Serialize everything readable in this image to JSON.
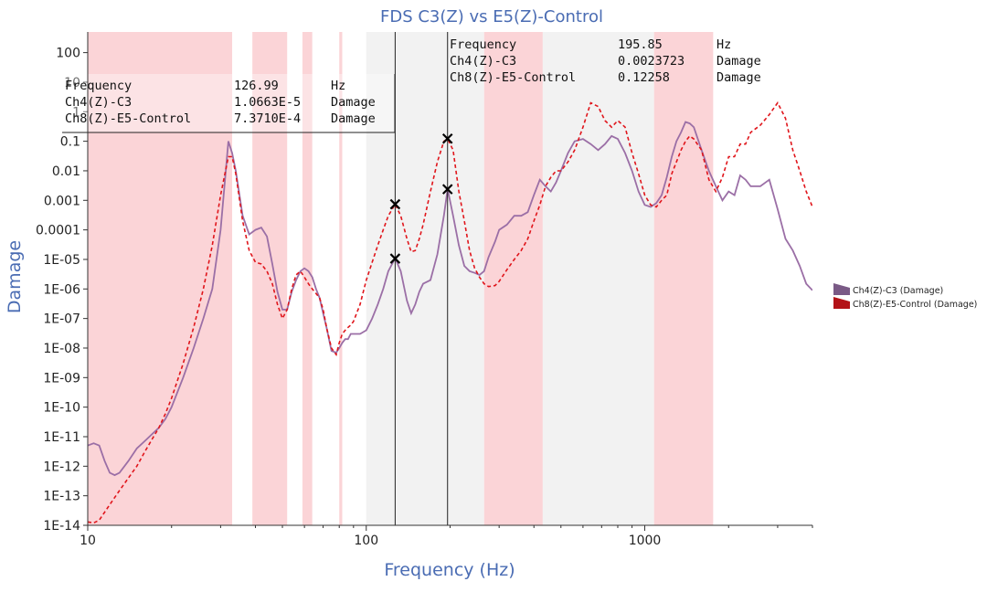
{
  "chart_data": {
    "type": "line",
    "title": "FDS C3(Z) vs E5(Z)-Control",
    "xlabel": "Frequency (Hz)",
    "ylabel": "Damage",
    "x_scale": "log",
    "y_scale": "log",
    "xlim": [
      10,
      4000
    ],
    "ylim": [
      1e-14,
      500
    ],
    "x_ticks": [
      10,
      100,
      1000
    ],
    "x_tick_labels": [
      "10",
      "100",
      "1000"
    ],
    "y_ticks": [
      1e-14,
      1e-13,
      1e-12,
      1e-11,
      1e-10,
      1e-09,
      1e-08,
      1e-07,
      1e-06,
      1e-05,
      0.0001,
      0.001,
      0.01,
      0.1,
      1,
      10,
      100
    ],
    "y_tick_labels": [
      "1E-14",
      "1E-13",
      "1E-12",
      "1E-11",
      "1E-10",
      "1E-09",
      "1E-08",
      "1E-07",
      "1E-06",
      "1E-05",
      "0.0001",
      "0.001",
      "0.01",
      "0.1",
      "1",
      "10",
      "100"
    ],
    "legend_position": "right",
    "pink_bands": [
      [
        10,
        33
      ],
      [
        39,
        52
      ],
      [
        59,
        64
      ],
      [
        80,
        82
      ],
      [
        265,
        430
      ],
      [
        1080,
        1760
      ]
    ],
    "grey_bands": [
      [
        100,
        265
      ],
      [
        430,
        1080
      ]
    ],
    "series": [
      {
        "name": "Ch4(Z)-C3 (Damage)",
        "color": "#9b6fa6",
        "dash": "solid",
        "x": [
          10,
          10.5,
          11,
          11.5,
          12,
          12.5,
          13,
          14,
          15,
          16,
          17,
          18,
          19,
          20,
          22,
          24,
          26,
          28,
          30,
          32,
          33,
          34,
          36,
          38,
          40,
          42,
          44,
          46,
          48,
          50,
          52,
          54,
          56,
          58,
          60,
          62,
          64,
          66,
          68,
          70,
          72,
          75,
          78,
          80,
          82,
          84,
          86,
          88,
          90,
          95,
          100,
          105,
          110,
          115,
          120,
          127,
          133,
          140,
          145,
          150,
          155,
          160,
          170,
          180,
          190,
          196,
          205,
          215,
          225,
          235,
          245,
          255,
          265,
          275,
          290,
          300,
          320,
          340,
          360,
          380,
          400,
          420,
          440,
          460,
          480,
          500,
          530,
          560,
          600,
          640,
          680,
          720,
          760,
          800,
          850,
          900,
          950,
          1000,
          1050,
          1100,
          1150,
          1200,
          1250,
          1300,
          1350,
          1400,
          1450,
          1500,
          1600,
          1700,
          1800,
          1900,
          2000,
          2100,
          2200,
          2300,
          2400,
          2600,
          2800,
          3000,
          3200,
          3400,
          3600,
          3800,
          4000
        ],
        "y": [
          5e-12,
          6e-12,
          5e-12,
          1.5e-12,
          6e-13,
          5e-13,
          6e-13,
          1.5e-12,
          4e-12,
          7e-12,
          1.2e-11,
          2e-11,
          4e-11,
          1e-10,
          1e-09,
          1e-08,
          1e-07,
          1e-06,
          0.0001,
          0.1,
          0.04,
          0.01,
          0.0003,
          7e-05,
          0.0001,
          0.00012,
          6e-05,
          7e-06,
          8e-07,
          2e-07,
          2e-07,
          8e-07,
          2e-06,
          4e-06,
          5e-06,
          4e-06,
          2.5e-06,
          1e-06,
          5e-07,
          1.5e-07,
          5e-08,
          8e-09,
          7e-09,
          1e-08,
          1.5e-08,
          2e-08,
          2e-08,
          3e-08,
          3e-08,
          3e-08,
          4e-08,
          1e-07,
          3e-07,
          1e-06,
          4e-06,
          1.1e-05,
          4e-06,
          4e-07,
          1.5e-07,
          3e-07,
          8e-07,
          1.5e-06,
          2e-06,
          1.5e-05,
          0.0003,
          0.0024,
          0.0003,
          3e-05,
          6e-06,
          4e-06,
          3.5e-06,
          3e-06,
          4e-06,
          1.2e-05,
          4e-05,
          0.0001,
          0.00015,
          0.0003,
          0.0003,
          0.0004,
          0.0015,
          0.005,
          0.003,
          0.002,
          0.004,
          0.01,
          0.04,
          0.1,
          0.12,
          0.08,
          0.05,
          0.08,
          0.15,
          0.12,
          0.04,
          0.01,
          0.002,
          0.0007,
          0.0006,
          0.0008,
          0.0015,
          0.006,
          0.03,
          0.1,
          0.2,
          0.45,
          0.4,
          0.3,
          0.05,
          0.01,
          0.003,
          0.001,
          0.002,
          0.0015,
          0.007,
          0.005,
          0.003,
          0.003,
          0.005,
          0.0005,
          5e-05,
          2e-05,
          6e-06,
          1.5e-06,
          9e-07
        ]
      },
      {
        "name": "Ch8(Z)-E5-Control (Damage)",
        "color": "#e0151b",
        "dash": "dashed",
        "x": [
          10,
          10.5,
          11,
          12,
          13,
          14,
          15,
          16,
          17,
          18,
          19,
          20,
          22,
          24,
          26,
          28,
          30,
          32,
          33,
          34,
          36,
          38,
          40,
          42,
          44,
          46,
          48,
          50,
          52,
          54,
          56,
          58,
          60,
          62,
          64,
          66,
          68,
          70,
          72,
          75,
          78,
          80,
          82,
          84,
          86,
          88,
          90,
          95,
          100,
          105,
          110,
          115,
          120,
          127,
          133,
          140,
          145,
          150,
          155,
          160,
          170,
          180,
          190,
          196,
          205,
          215,
          225,
          235,
          245,
          255,
          265,
          275,
          290,
          300,
          320,
          340,
          360,
          380,
          400,
          420,
          440,
          460,
          480,
          500,
          530,
          560,
          600,
          640,
          680,
          720,
          760,
          800,
          850,
          900,
          950,
          1000,
          1050,
          1100,
          1150,
          1200,
          1250,
          1300,
          1350,
          1400,
          1450,
          1500,
          1600,
          1700,
          1800,
          1900,
          2000,
          2100,
          2200,
          2300,
          2400,
          2600,
          2800,
          3000,
          3200,
          3400,
          3600,
          3800,
          4000
        ],
        "y": [
          1.3e-14,
          1.2e-14,
          1.5e-14,
          5e-14,
          1.5e-13,
          4e-13,
          1e-12,
          3e-12,
          8e-12,
          2e-11,
          6e-11,
          2e-10,
          3e-09,
          5e-08,
          1e-06,
          3e-05,
          0.0015,
          0.03,
          0.03,
          0.008,
          0.0002,
          2e-05,
          8e-06,
          7e-06,
          4e-06,
          1.5e-06,
          3e-07,
          1e-07,
          2e-07,
          1e-06,
          3e-06,
          4e-06,
          2.5e-06,
          1.5e-06,
          1e-06,
          7e-07,
          5e-07,
          2e-07,
          5e-08,
          1e-08,
          6e-09,
          1.5e-08,
          3e-08,
          4e-08,
          5e-08,
          6e-08,
          8e-08,
          3e-07,
          2e-06,
          8e-06,
          3e-05,
          0.0001,
          0.0003,
          0.00074,
          0.0003,
          5e-05,
          1.8e-05,
          2e-05,
          5e-05,
          0.00015,
          0.002,
          0.02,
          0.1,
          0.12,
          0.05,
          0.002,
          0.0002,
          2e-05,
          5e-06,
          2.5e-06,
          1.5e-06,
          1.2e-06,
          1.3e-06,
          1.8e-06,
          4.5e-06,
          1e-05,
          2e-05,
          5e-05,
          0.0002,
          0.0007,
          0.003,
          0.006,
          0.01,
          0.01,
          0.02,
          0.05,
          0.3,
          2,
          1.5,
          0.5,
          0.3,
          0.5,
          0.3,
          0.04,
          0.008,
          0.0015,
          0.0007,
          0.0006,
          0.001,
          0.0015,
          0.008,
          0.02,
          0.05,
          0.1,
          0.15,
          0.12,
          0.05,
          0.005,
          0.002,
          0.006,
          0.03,
          0.03,
          0.08,
          0.08,
          0.2,
          0.35,
          0.8,
          2,
          0.6,
          0.05,
          0.01,
          0.002,
          0.0006
        ]
      }
    ],
    "cursors": [
      {
        "frequency": 126.99,
        "lines": [
          {
            "label": "Frequency",
            "value": "126.99",
            "unit": "Hz"
          },
          {
            "label": "Ch4(Z)-C3",
            "value": "1.0663E-5",
            "unit": "Damage"
          },
          {
            "label": "Ch8(Z)-E5-Control",
            "value": "7.3710E-4",
            "unit": "Damage"
          }
        ],
        "markers": [
          1.0663e-05,
          0.0007371
        ]
      },
      {
        "frequency": 195.85,
        "lines": [
          {
            "label": "Frequency",
            "value": "195.85",
            "unit": "Hz"
          },
          {
            "label": "Ch4(Z)-C3",
            "value": "0.0023723",
            "unit": "Damage"
          },
          {
            "label": "Ch8(Z)-E5-Control",
            "value": "0.12258",
            "unit": "Damage"
          }
        ],
        "markers": [
          0.0023723,
          0.12258
        ]
      }
    ]
  }
}
